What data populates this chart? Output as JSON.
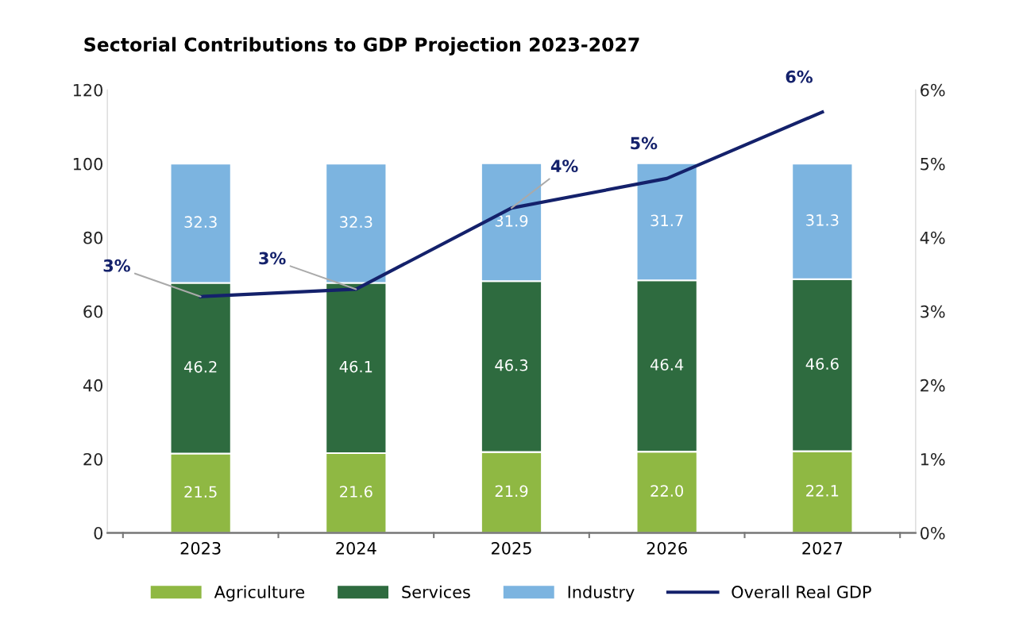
{
  "chart_data": {
    "type": "bar",
    "title": "Sectorial Contributions to GDP Projection 2023-2027",
    "categories": [
      "2023",
      "2024",
      "2025",
      "2026",
      "2027"
    ],
    "stacked": true,
    "series": [
      {
        "name": "Agriculture",
        "color": "#8fb843",
        "values": [
          21.5,
          21.6,
          21.9,
          22.0,
          22.1
        ],
        "value_labels": [
          "21.5",
          "21.6",
          "21.9",
          "22.0",
          "22.1"
        ]
      },
      {
        "name": "Services",
        "color": "#2e6b3f",
        "values": [
          46.2,
          46.1,
          46.3,
          46.4,
          46.6
        ],
        "value_labels": [
          "46.2",
          "46.1",
          "46.3",
          "46.4",
          "46.6"
        ]
      },
      {
        "name": "Industry",
        "color": "#7cb4e0",
        "values": [
          32.3,
          32.3,
          31.9,
          31.7,
          31.3
        ],
        "value_labels": [
          "32.3",
          "32.3",
          "31.9",
          "31.7",
          "31.3"
        ]
      },
      {
        "name": "Overall Real GDP",
        "type": "line",
        "axis": "y2",
        "color": "#14216b",
        "values": [
          3.2,
          3.3,
          4.4,
          4.8,
          5.7
        ],
        "value_labels": [
          "3%",
          "3%",
          "4%",
          "5%",
          "6%"
        ]
      }
    ],
    "ylim": [
      0,
      120
    ],
    "yticks": [
      0,
      20,
      40,
      60,
      80,
      100,
      120
    ],
    "y2lim": [
      0,
      6
    ],
    "y2ticks": [
      {
        "value": 0,
        "label": "0%"
      },
      {
        "value": 1,
        "label": "1%"
      },
      {
        "value": 2,
        "label": "2%"
      },
      {
        "value": 3,
        "label": "3%"
      },
      {
        "value": 4,
        "label": "4%"
      },
      {
        "value": 5,
        "label": "5%"
      },
      {
        "value": 6,
        "label": "6%"
      }
    ],
    "grid": false,
    "legend": "bottom",
    "marker": "none",
    "line_style": "solid"
  }
}
